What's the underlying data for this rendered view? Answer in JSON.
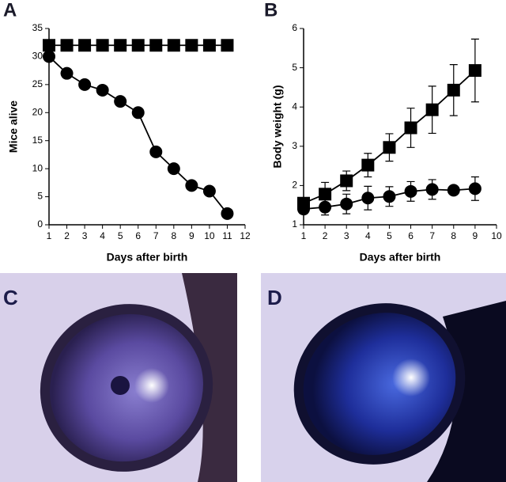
{
  "chart_data": [
    {
      "type": "line",
      "label": "A",
      "xlabel": "Days after birth",
      "ylabel": "Mice alive",
      "x": [
        1,
        2,
        3,
        4,
        5,
        6,
        7,
        8,
        9,
        10,
        11
      ],
      "series": [
        {
          "color": "#000000",
          "marker": "square",
          "values": [
            32,
            32,
            32,
            32,
            32,
            32,
            32,
            32,
            32,
            32,
            32
          ]
        },
        {
          "color": "#000000",
          "marker": "circle",
          "values": [
            30,
            27,
            25,
            24,
            22,
            20,
            13,
            10,
            7,
            6,
            2
          ]
        }
      ],
      "xlim": [
        1,
        12
      ],
      "xticks": [
        1,
        2,
        3,
        4,
        5,
        6,
        7,
        8,
        9,
        10,
        11,
        12
      ],
      "ylim": [
        0,
        35
      ],
      "yticks": [
        0,
        5,
        10,
        15,
        20,
        25,
        30,
        35
      ],
      "grid": false
    },
    {
      "type": "line",
      "label": "B",
      "xlabel": "Days after birth",
      "ylabel": "Body weight (g)",
      "x": [
        1,
        2,
        3,
        4,
        5,
        6,
        7,
        8,
        9
      ],
      "series": [
        {
          "color": "#000000",
          "marker": "square",
          "values": [
            1.55,
            1.78,
            2.12,
            2.52,
            2.97,
            3.47,
            3.93,
            4.43,
            4.93
          ],
          "errors": [
            0.1,
            0.3,
            0.25,
            0.3,
            0.35,
            0.5,
            0.6,
            0.65,
            0.8
          ]
        },
        {
          "color": "#000000",
          "marker": "circle",
          "values": [
            1.4,
            1.45,
            1.53,
            1.68,
            1.72,
            1.85,
            1.9,
            1.88,
            1.92
          ],
          "errors": [
            0.1,
            0.2,
            0.25,
            0.3,
            0.25,
            0.25,
            0.25,
            0.05,
            0.3
          ]
        }
      ],
      "xlim": [
        1,
        10
      ],
      "xticks": [
        1,
        2,
        3,
        4,
        5,
        6,
        7,
        8,
        9,
        10
      ],
      "ylim": [
        1,
        6
      ],
      "yticks": [
        1,
        2,
        3,
        4,
        5,
        6
      ],
      "grid": false
    }
  ],
  "panels": [
    {
      "label": "C"
    },
    {
      "label": "D"
    }
  ]
}
